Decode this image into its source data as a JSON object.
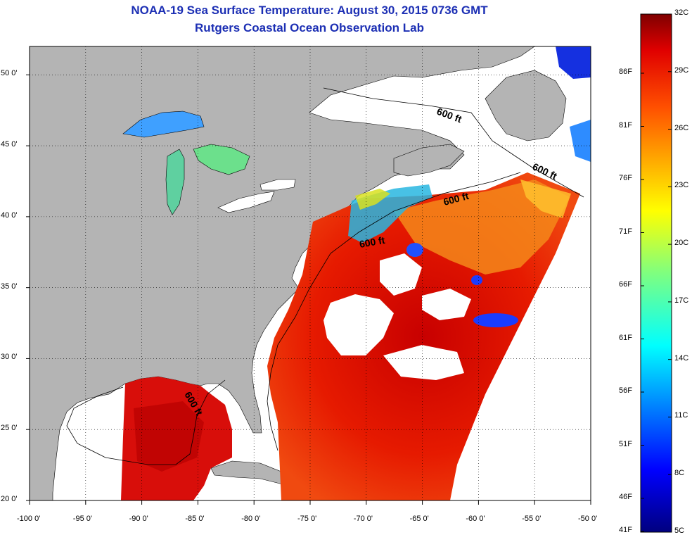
{
  "title": "NOAA-19 Sea Surface Temperature:  August 30, 2015 0736 GMT",
  "subtitle": "Rutgers Coastal Ocean Observation Lab",
  "map": {
    "lon_range": [
      -100,
      -50
    ],
    "lat_range": [
      20,
      52
    ],
    "grid": "dotted",
    "land_color": "#b4b4b4",
    "no_data_color": "#ffffff",
    "isobath_label": "600 ft"
  },
  "x_ticks": [
    {
      "label": "-100 0'"
    },
    {
      "label": "-95 0'"
    },
    {
      "label": "-90 0'"
    },
    {
      "label": "-85 0'"
    },
    {
      "label": "-80 0'"
    },
    {
      "label": "-75 0'"
    },
    {
      "label": "-70 0'"
    },
    {
      "label": "-65 0'"
    },
    {
      "label": "-60 0'"
    },
    {
      "label": "-55 0'"
    },
    {
      "label": "-50 0'"
    }
  ],
  "y_ticks": [
    {
      "label": "20 0'"
    },
    {
      "label": "25 0'"
    },
    {
      "label": "30 0'"
    },
    {
      "label": "35 0'"
    },
    {
      "label": "40 0'"
    },
    {
      "label": "45 0'"
    },
    {
      "label": "50 0'"
    }
  ],
  "colorbar": {
    "celsius_labels": [
      "32C",
      "29C",
      "26C",
      "23C",
      "20C",
      "17C",
      "14C",
      "11C",
      "8C",
      "5C"
    ],
    "fahrenheit_labels": [
      "86F",
      "81F",
      "76F",
      "71F",
      "66F",
      "61F",
      "56F",
      "51F",
      "46F",
      "41F"
    ],
    "colors": [
      "#00007f",
      "#0000ff",
      "#007fff",
      "#00ffff",
      "#7fff7f",
      "#ffff00",
      "#ff7f00",
      "#ff0000",
      "#7f0000"
    ]
  }
}
